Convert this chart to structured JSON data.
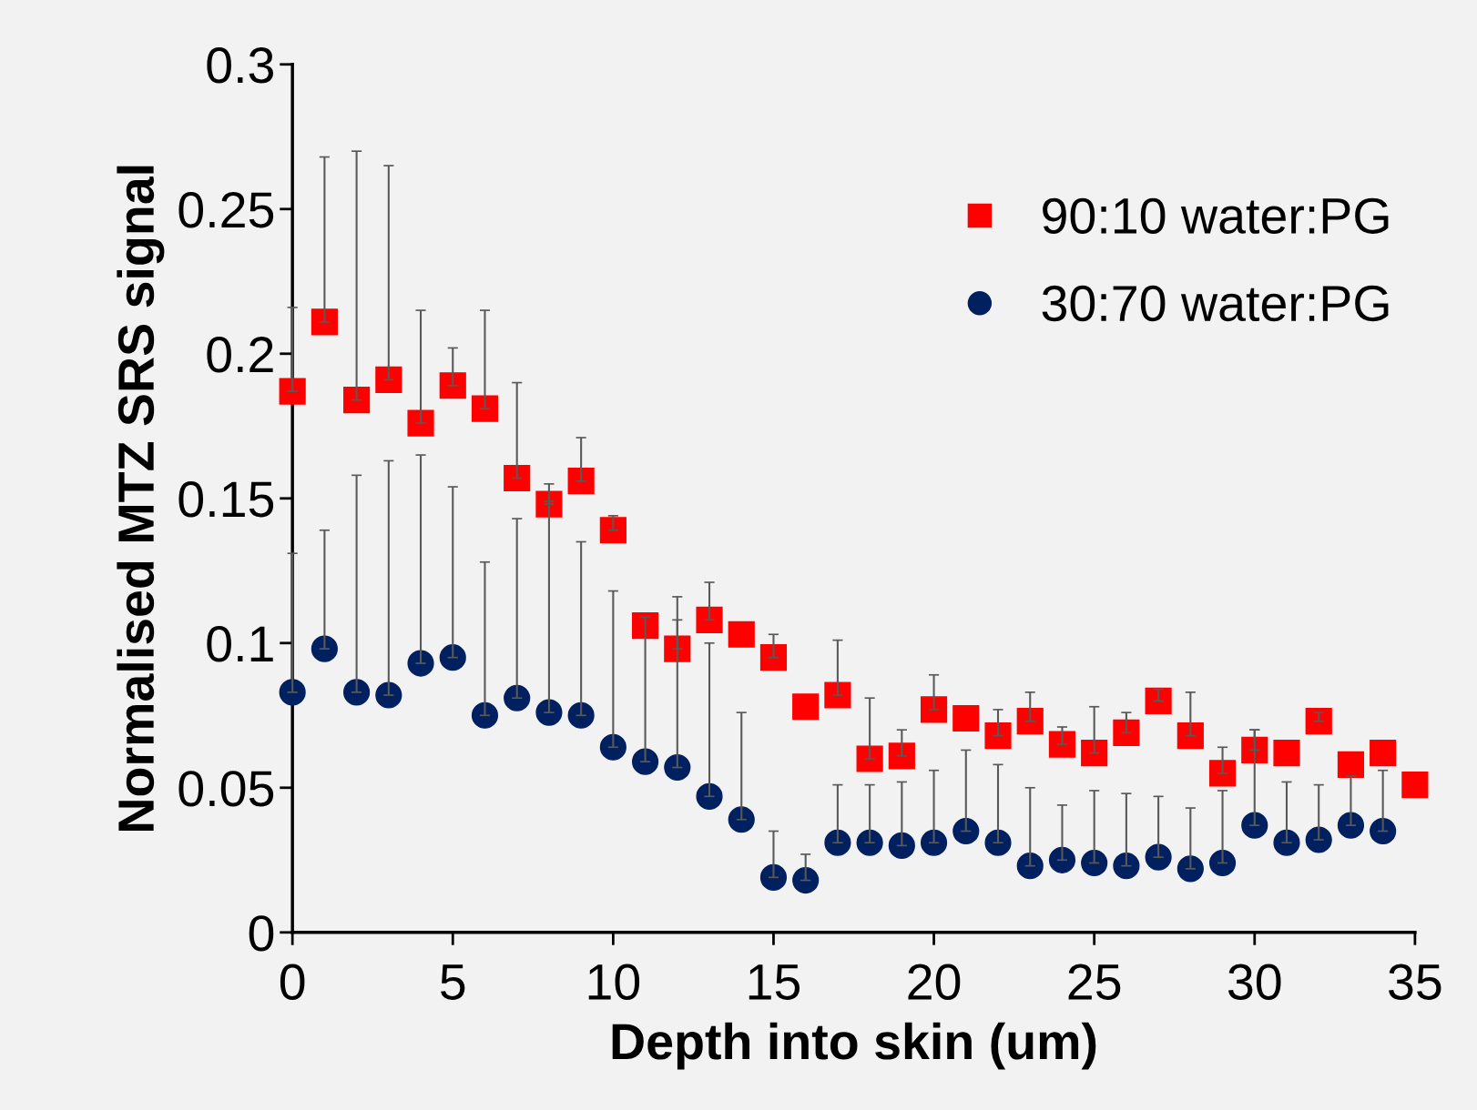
{
  "chart_data": {
    "type": "scatter",
    "xlabel": "Depth into skin (um)",
    "ylabel": "Normalised MTZ SRS signal",
    "x": [
      0,
      1,
      2,
      3,
      4,
      5,
      6,
      7,
      8,
      9,
      10,
      11,
      12,
      13,
      14,
      15,
      16,
      17,
      18,
      19,
      20,
      21,
      22,
      23,
      24,
      25,
      26,
      27,
      28,
      29,
      30,
      31,
      32,
      33,
      34,
      35
    ],
    "xlim": [
      0,
      35
    ],
    "xticks": [
      0,
      5,
      10,
      15,
      20,
      25,
      30,
      35
    ],
    "ylim": [
      0,
      0.3
    ],
    "yticks": [
      0,
      0.05,
      0.1,
      0.15,
      0.2,
      0.25,
      0.3
    ],
    "grid": false,
    "legend": "top right",
    "series": [
      {
        "name": "90:10 water:PG",
        "color": "#ff0000",
        "marker": "square",
        "values": [
          0.187,
          0.211,
          0.184,
          0.191,
          0.176,
          0.189,
          0.181,
          0.157,
          0.148,
          0.156,
          0.139,
          0.106,
          0.098,
          0.108,
          0.103,
          0.095,
          0.078,
          0.082,
          0.06,
          0.061,
          0.077,
          0.074,
          0.068,
          0.073,
          0.065,
          0.062,
          0.069,
          0.08,
          0.068,
          0.055,
          0.063,
          0.062,
          0.073,
          0.058,
          0.062,
          0.051
        ],
        "errors": [
          [
            0.187,
            0.216
          ],
          [
            0.211,
            0.268
          ],
          [
            0.184,
            0.27
          ],
          [
            0.191,
            0.265
          ],
          [
            0.176,
            0.215
          ],
          [
            0.189,
            0.202
          ],
          [
            0.181,
            0.215
          ],
          [
            0.157,
            0.19
          ],
          [
            0.148,
            0.155
          ],
          [
            0.156,
            0.171
          ],
          [
            0.139,
            0.144
          ],
          null,
          [
            0.098,
            0.116
          ],
          [
            0.108,
            0.121
          ],
          null,
          [
            0.095,
            0.103
          ],
          null,
          [
            0.082,
            0.101
          ],
          [
            0.06,
            0.081
          ],
          [
            0.061,
            0.07
          ],
          [
            0.077,
            0.089
          ],
          null,
          [
            0.068,
            0.077
          ],
          [
            0.073,
            0.083
          ],
          [
            0.065,
            0.071
          ],
          [
            0.062,
            0.078
          ],
          [
            0.069,
            0.076
          ],
          [
            0.08,
            0.084
          ],
          [
            0.068,
            0.083
          ],
          [
            0.055,
            0.064
          ],
          [
            0.063,
            0.07
          ],
          null,
          [
            0.073,
            0.076
          ],
          null,
          null,
          null
        ]
      },
      {
        "name": "30:70 water:PG",
        "color": "#002060",
        "marker": "circle",
        "x": [
          0,
          1,
          2,
          3,
          4,
          5,
          6,
          7,
          8,
          9,
          10,
          11,
          12,
          13,
          14,
          15,
          16,
          17,
          18,
          19,
          20,
          21,
          22,
          23,
          24,
          25,
          26,
          27,
          28,
          29,
          30,
          31,
          32,
          33,
          34
        ],
        "values": [
          0.083,
          0.098,
          0.083,
          0.082,
          0.093,
          0.095,
          0.075,
          0.081,
          0.076,
          0.075,
          0.064,
          0.059,
          0.057,
          0.047,
          0.039,
          0.019,
          0.018,
          0.031,
          0.031,
          0.03,
          0.031,
          0.035,
          0.031,
          0.023,
          0.025,
          0.024,
          0.023,
          0.026,
          0.022,
          0.024,
          0.037,
          0.031,
          0.032,
          0.037,
          0.035
        ],
        "errors": [
          [
            0.083,
            0.131
          ],
          [
            0.098,
            0.139
          ],
          [
            0.083,
            0.158
          ],
          [
            0.082,
            0.163
          ],
          [
            0.093,
            0.165
          ],
          [
            0.095,
            0.154
          ],
          [
            0.075,
            0.128
          ],
          [
            0.081,
            0.143
          ],
          [
            0.076,
            0.149
          ],
          [
            0.075,
            0.135
          ],
          [
            0.064,
            0.118
          ],
          [
            0.059,
            0.109
          ],
          [
            0.057,
            0.108
          ],
          [
            0.047,
            0.1
          ],
          [
            0.039,
            0.076
          ],
          [
            0.019,
            0.035
          ],
          [
            0.018,
            0.027
          ],
          [
            0.031,
            0.051
          ],
          [
            0.031,
            0.051
          ],
          [
            0.03,
            0.052
          ],
          [
            0.031,
            0.056
          ],
          [
            0.035,
            0.063
          ],
          [
            0.031,
            0.058
          ],
          [
            0.023,
            0.05
          ],
          [
            0.025,
            0.044
          ],
          [
            0.024,
            0.049
          ],
          [
            0.023,
            0.048
          ],
          [
            0.026,
            0.047
          ],
          [
            0.022,
            0.043
          ],
          [
            0.024,
            0.049
          ],
          [
            0.037,
            0.07
          ],
          [
            0.031,
            0.052
          ],
          [
            0.032,
            0.051
          ],
          [
            0.037,
            0.054
          ],
          [
            0.035,
            0.056
          ]
        ]
      }
    ]
  }
}
